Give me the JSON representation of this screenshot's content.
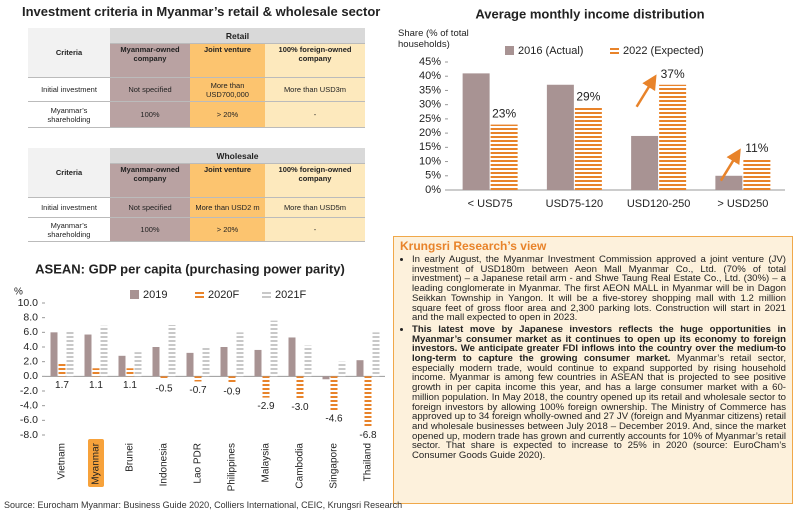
{
  "title": "Investment criteria in Myanmar’s retail & wholesale sector",
  "tables": [
    {
      "group": "Retail",
      "columns": [
        "Criteria",
        "Myanmar-owned company",
        "Joint venture",
        "100% foreign-owned company"
      ],
      "rows": [
        [
          "Initial investment",
          "Not specified",
          "More than USD700,000",
          "More than USD3m"
        ],
        [
          "Myanmar’s shareholding",
          "100%",
          "> 20%",
          "-"
        ]
      ]
    },
    {
      "group": "Wholesale",
      "columns": [
        "Criteria",
        "Myanmar-owned company",
        "Joint venture",
        "100% foreign-owned company"
      ],
      "rows": [
        [
          "Initial investment",
          "Not specified",
          "More than USD2 m",
          "More than USD5m"
        ],
        [
          "Myanmar’s shareholding",
          "100%",
          "> 20%",
          "-"
        ]
      ]
    }
  ],
  "chart_data": [
    {
      "type": "bar",
      "title": "Average monthly income distribution",
      "y_label": "Share (% of total households)",
      "categories": [
        "< USD75",
        "USD75-120",
        "USD120-250",
        "> USD250"
      ],
      "series": [
        {
          "name": "2016 (Actual)",
          "color": "#a89393",
          "striped": false,
          "values": [
            41,
            37,
            19,
            5
          ]
        },
        {
          "name": "2022 (Expected)",
          "color": "#e8832a",
          "striped": true,
          "values": [
            23,
            29,
            37,
            11
          ],
          "value_labels": [
            "23%",
            "29%",
            "37%",
            "11%"
          ]
        }
      ],
      "ylim": [
        0,
        45
      ],
      "yticks": [
        {
          "value": 0,
          "label": "0%"
        },
        {
          "value": 5,
          "label": "5%"
        },
        {
          "value": 10,
          "label": "10%"
        },
        {
          "value": 15,
          "label": "15%"
        },
        {
          "value": 20,
          "label": "20%"
        },
        {
          "value": 25,
          "label": "25%"
        },
        {
          "value": 30,
          "label": "30%"
        },
        {
          "value": 35,
          "label": "35%"
        },
        {
          "value": 40,
          "label": "40%"
        },
        {
          "value": 45,
          "label": "45%"
        }
      ],
      "grid": false
    },
    {
      "type": "bar",
      "title": "ASEAN: GDP per capita (purchasing power parity)",
      "y_label": "%",
      "categories": [
        "Vietnam",
        "Myanmar",
        "Brunei",
        "Indonesia",
        "Lao PDR",
        "Philippines",
        "Malaysia",
        "Cambodia",
        "Singapore",
        "Thailand"
      ],
      "highlight_index": 1,
      "series": [
        {
          "name": "2019",
          "color": "#a89393",
          "striped": false,
          "values": [
            6.0,
            5.7,
            2.8,
            4.0,
            3.2,
            4.0,
            3.6,
            5.3,
            -0.4,
            2.2
          ]
        },
        {
          "name": "2020F",
          "color": "#e8832a",
          "striped": true,
          "values": [
            1.7,
            1.1,
            1.1,
            -0.5,
            -0.7,
            -0.9,
            -2.9,
            -3.0,
            -4.6,
            -6.8
          ],
          "value_labels": [
            "1.7",
            "1.1",
            "1.1",
            "-0.5",
            "-0.7",
            "-0.9",
            "-2.9",
            "-3.0",
            "-4.6",
            "-6.8"
          ]
        },
        {
          "name": "2021F",
          "color": "#c8c8c8",
          "striped": true,
          "values": [
            6.1,
            6.9,
            3.3,
            7.0,
            4.0,
            6.0,
            7.6,
            4.2,
            2.0,
            6.0
          ]
        }
      ],
      "ylim": [
        -8,
        10
      ],
      "yticks": [
        {
          "value": 10,
          "label": "10.0"
        },
        {
          "value": 8,
          "label": "8.0"
        },
        {
          "value": 6,
          "label": "6.0"
        },
        {
          "value": 4,
          "label": "4.0"
        },
        {
          "value": 2,
          "label": "2.0"
        },
        {
          "value": 0,
          "label": "0.0"
        },
        {
          "value": -2,
          "label": "-2.0"
        },
        {
          "value": -4,
          "label": "-4.0"
        },
        {
          "value": -6,
          "label": "-6.0"
        },
        {
          "value": -8,
          "label": "-8.0"
        }
      ],
      "grid": false
    }
  ],
  "view": {
    "title": "Krungsri Research’s view",
    "bullets": [
      {
        "text": "In early August, the Myanmar Investment Commission approved a joint venture (JV) investment of USD180m between Aeon Mall Myanmar Co., Ltd. (70% of total investment) – a Japanese retail arm - and Shwe Taung Real Estate Co., Ltd. (30%) – a leading conglomerate in Myanmar. The first AEON MALL in Myanmar will be in Dagon Seikkan Township in Yangon. It will be a five-storey shopping mall with 1.2 million square feet of gross floor area and 2,300 parking lots. Construction will start in 2021 and the mall expected to open in 2023."
      },
      {
        "bold": "This latest move by Japanese investors reflects the huge opportunities in Myanmar’s consumer market as it continues to open up its economy to foreign investors. We anticipate greater FDI inflows into the country over the medium-to long-term to capture the growing consumer market.",
        "text": "Myanmar’s retail sector, especially modern trade, would continue to expand supported by rising household income. Myanmar is among few countries in ASEAN that is projected to see positive growth in per capita income this year, and has a large consumer market with a 60-million population. In May 2018, the country opened up its retail and wholesale sector to foreign investors by allowing 100% foreign ownership. The Ministry of Commerce has approved up to 34 foreign wholly-owned and 27 JV (foreign and Myanmar citizens) retail and wholesale businesses between July 2018 – December 2019. And, since the market opened up, modern trade has grown and currently accounts for 10% of Myanmar’s retail sector. That share is expected to increase to 25% in 2020 (source: EuroCham’s Consumer Goods Guide 2020)."
      }
    ]
  },
  "source": "Source: Eurocham Myanmar: Business Guide 2020, Colliers International, CEIC, Krungsri Research"
}
